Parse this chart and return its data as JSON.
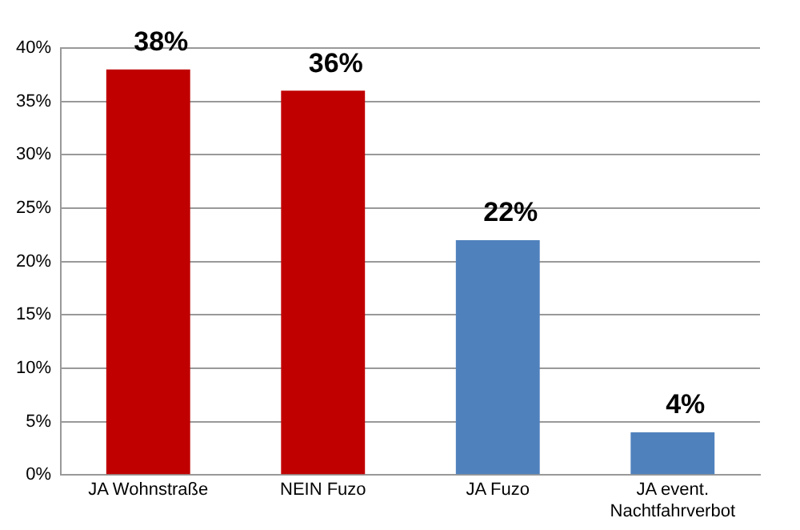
{
  "chart_data": {
    "type": "bar",
    "categories": [
      "JA Wohnstraße",
      "NEIN Fuzo",
      "JA Fuzo",
      "JA event. Nachtfahrverbot"
    ],
    "values": [
      38,
      36,
      22,
      4
    ],
    "colors": [
      "#c00000",
      "#c00000",
      "#4f81bd",
      "#4f81bd"
    ],
    "value_labels": [
      "38%",
      "36%",
      "22%",
      "4%"
    ],
    "ylim": [
      0,
      40
    ],
    "yticks": [
      {
        "value": 0,
        "label": "0%"
      },
      {
        "value": 5,
        "label": "5%"
      },
      {
        "value": 10,
        "label": "10%"
      },
      {
        "value": 15,
        "label": "15%"
      },
      {
        "value": 20,
        "label": "20%"
      },
      {
        "value": 25,
        "label": "25%"
      },
      {
        "value": 30,
        "label": "30%"
      },
      {
        "value": 35,
        "label": "35%"
      },
      {
        "value": 40,
        "label": "40%"
      }
    ],
    "grid": "y",
    "legend": false
  }
}
